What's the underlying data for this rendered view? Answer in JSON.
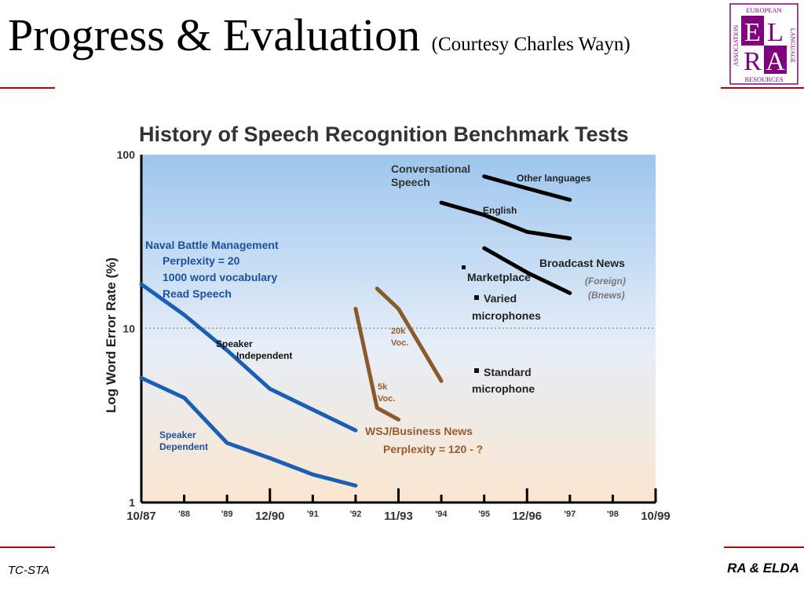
{
  "slide": {
    "title": "Progress & Evaluation",
    "subtitle": "(Courtesy Charles Wayn)",
    "footer_left": "TC-STA",
    "footer_right": "RA & ELDA"
  },
  "logo": {
    "top_text": "EUROPEAN",
    "left_text": "ASSOCIATION",
    "right_text": "LANGUAGE",
    "bottom_text": "RESOURCES",
    "letters": [
      "E",
      "L",
      "R",
      "A"
    ],
    "color": "#800080"
  },
  "colors": {
    "accent_red": "#c00000",
    "blue_series": "#1a5fb4",
    "brown_series": "#8b5a2b",
    "black_series": "#000000"
  },
  "chart_data": {
    "type": "line",
    "title": "History of Speech Recognition Benchmark Tests",
    "ylabel": "Log Word Error Rate (%)",
    "y_scale": "log",
    "ylim": [
      1,
      100
    ],
    "y_ticks": [
      "100",
      "10",
      "1"
    ],
    "x_ticks": [
      "10/87",
      "'88",
      "'89",
      "12/90",
      "'91",
      "'92",
      "11/93",
      "'94",
      "'95",
      "12/96",
      "'97",
      "'98",
      "10/99"
    ],
    "series": [
      {
        "group": "Naval Battle Management - Speaker Independent",
        "color": "blue",
        "points": [
          [
            "10/87",
            18
          ],
          [
            "'88",
            12
          ],
          [
            "'89",
            7.5
          ],
          [
            "12/90",
            4.5
          ],
          [
            "'92",
            2.6
          ]
        ]
      },
      {
        "group": "Naval Battle Management - Speaker Dependent",
        "color": "blue",
        "points": [
          [
            "10/87",
            5.2
          ],
          [
            "'88",
            4.0
          ],
          [
            "'89",
            2.2
          ],
          [
            "12/90",
            1.8
          ],
          [
            "'91",
            1.45
          ],
          [
            "'92",
            1.25
          ]
        ]
      },
      {
        "group": "WSJ/Business News - 5k Voc.",
        "color": "brown",
        "points": [
          [
            "'92",
            13
          ],
          [
            "'92.5",
            3.5
          ],
          [
            "11/93",
            3.0
          ]
        ]
      },
      {
        "group": "WSJ/Business News - 20k Voc.",
        "color": "brown",
        "points": [
          [
            "'92.5",
            17
          ],
          [
            "11/93",
            13
          ],
          [
            "'94",
            5.0
          ]
        ]
      },
      {
        "group": "Conversational Speech - Other languages",
        "color": "black",
        "points": [
          [
            "'95",
            75
          ],
          [
            "12/96",
            64
          ],
          [
            "'97",
            55
          ]
        ]
      },
      {
        "group": "Conversational Speech - English",
        "color": "black",
        "points": [
          [
            "'94",
            53
          ],
          [
            "'95",
            45
          ],
          [
            "12/96",
            36
          ],
          [
            "'97",
            33
          ]
        ]
      },
      {
        "group": "Broadcast News",
        "color": "black",
        "points": [
          [
            "'95",
            29
          ],
          [
            "12/96",
            21
          ],
          [
            "'97",
            16
          ]
        ]
      }
    ],
    "annotations": {
      "naval": {
        "title": "Naval Battle Management",
        "lines": [
          "Perplexity = 20",
          "1000 word vocabulary",
          "Read Speech"
        ]
      },
      "speaker_independent": [
        "Speaker",
        "Independent"
      ],
      "speaker_dependent": [
        "Speaker",
        "Dependent"
      ],
      "voc20k": [
        "20k",
        "Voc."
      ],
      "voc5k": [
        "5k",
        "Voc."
      ],
      "wsj": [
        "WSJ/Business News",
        "Perplexity = 120 - ?"
      ],
      "conversational": [
        "Conversational",
        "Speech"
      ],
      "other_languages": "Other languages",
      "english": "English",
      "broadcast_news": "Broadcast News",
      "foreign": [
        "(Foreign)",
        "(Bnews)"
      ],
      "marketplace": "Marketplace",
      "varied": [
        "Varied",
        "microphones"
      ],
      "standard": [
        "Standard",
        "microphone"
      ]
    }
  }
}
